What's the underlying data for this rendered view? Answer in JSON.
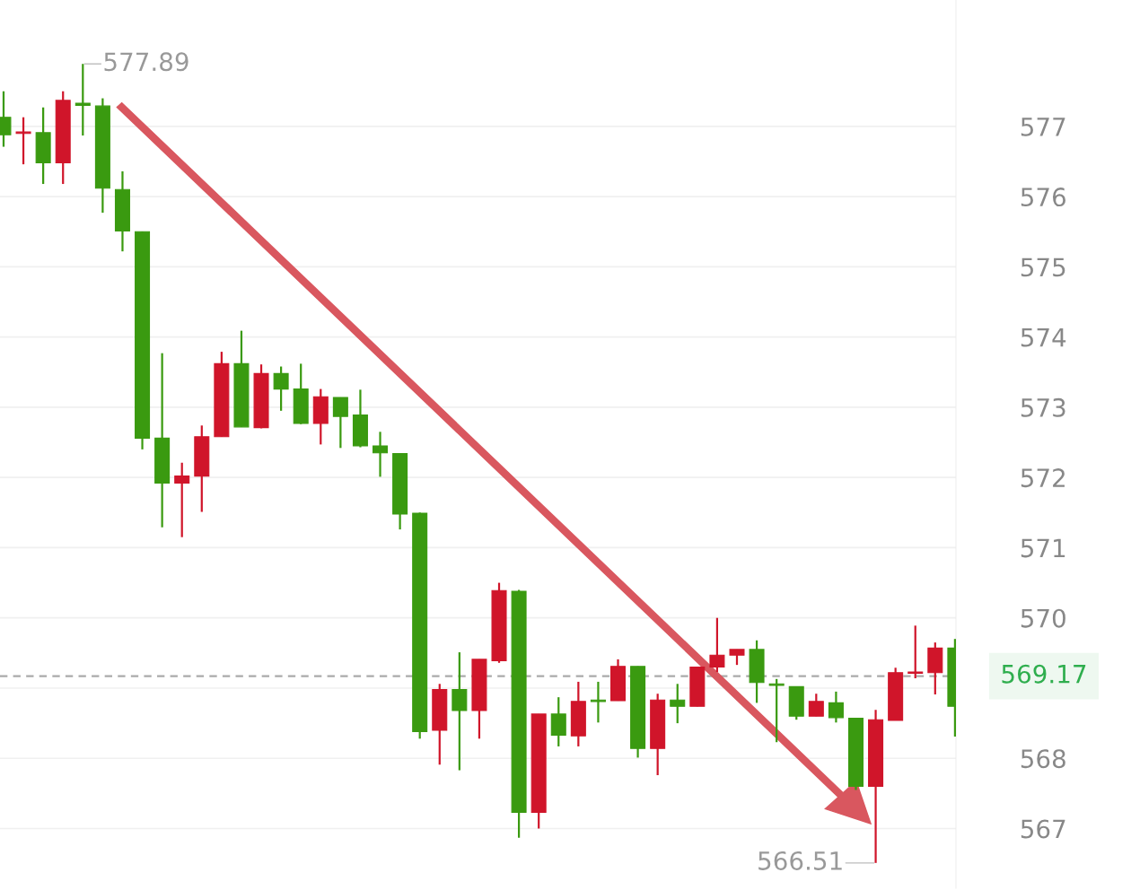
{
  "chart_data": {
    "type": "candlestick",
    "categories": [
      null,
      null,
      null,
      null,
      null,
      null,
      null,
      null,
      null,
      null,
      null,
      null,
      null,
      null,
      null,
      null,
      null,
      null,
      null,
      null,
      null,
      null,
      null,
      null,
      null,
      null,
      null,
      null,
      null,
      null,
      null,
      null,
      null,
      null,
      null,
      null,
      null,
      null,
      null,
      null,
      null,
      null,
      null,
      null,
      null,
      null,
      null,
      null,
      null
    ],
    "ohlc": [
      [
        577.13,
        577.5,
        576.71,
        576.88
      ],
      [
        576.9,
        577.13,
        576.46,
        576.92
      ],
      [
        576.91,
        577.27,
        576.18,
        576.48
      ],
      [
        576.48,
        577.5,
        576.18,
        577.37
      ],
      [
        577.33,
        577.89,
        576.87,
        577.3
      ],
      [
        577.29,
        577.4,
        575.77,
        576.12
      ],
      [
        576.1,
        576.36,
        575.22,
        575.51
      ],
      [
        575.5,
        575.5,
        572.4,
        572.56
      ],
      [
        572.56,
        573.77,
        571.29,
        571.92
      ],
      [
        571.92,
        572.21,
        571.15,
        572.02
      ],
      [
        572.02,
        572.74,
        571.51,
        572.58
      ],
      [
        572.58,
        573.79,
        572.58,
        573.62
      ],
      [
        573.62,
        574.09,
        572.72,
        572.72
      ],
      [
        572.71,
        573.61,
        572.7,
        573.48
      ],
      [
        573.48,
        573.58,
        572.95,
        573.26
      ],
      [
        573.26,
        573.62,
        572.76,
        572.77
      ],
      [
        572.77,
        573.26,
        572.47,
        573.15
      ],
      [
        573.14,
        573.14,
        572.42,
        572.87
      ],
      [
        572.89,
        573.25,
        572.43,
        572.45
      ],
      [
        572.45,
        572.65,
        572.01,
        572.35
      ],
      [
        572.34,
        572.34,
        571.26,
        571.48
      ],
      [
        571.49,
        571.5,
        568.28,
        568.38
      ],
      [
        568.4,
        569.06,
        567.91,
        568.98
      ],
      [
        568.98,
        569.51,
        567.83,
        568.68
      ],
      [
        568.68,
        569.41,
        568.28,
        569.41
      ],
      [
        569.39,
        570.5,
        569.36,
        570.39
      ],
      [
        570.38,
        570.4,
        566.87,
        567.23
      ],
      [
        567.23,
        568.63,
        567.0,
        568.63
      ],
      [
        568.63,
        568.87,
        568.17,
        568.33
      ],
      [
        568.32,
        569.09,
        568.17,
        568.81
      ],
      [
        568.82,
        569.09,
        568.51,
        568.81
      ],
      [
        568.82,
        569.41,
        568.82,
        569.31
      ],
      [
        569.31,
        569.31,
        568.01,
        568.14
      ],
      [
        568.14,
        568.92,
        567.76,
        568.83
      ],
      [
        568.83,
        569.06,
        568.5,
        568.74
      ],
      [
        568.74,
        569.3,
        568.74,
        569.3
      ],
      [
        569.3,
        570.0,
        569.23,
        569.47
      ],
      [
        569.47,
        569.55,
        569.33,
        569.55
      ],
      [
        569.55,
        569.68,
        568.79,
        569.08
      ],
      [
        569.06,
        569.13,
        568.23,
        569.04
      ],
      [
        569.02,
        569.02,
        568.55,
        568.6
      ],
      [
        568.6,
        568.92,
        568.6,
        568.81
      ],
      [
        568.79,
        568.95,
        568.51,
        568.58
      ],
      [
        568.57,
        568.57,
        567.55,
        567.6
      ],
      [
        567.6,
        568.69,
        566.51,
        568.55
      ],
      [
        568.54,
        569.29,
        568.54,
        569.22
      ],
      [
        569.21,
        569.89,
        569.14,
        569.23
      ],
      [
        569.22,
        569.65,
        568.91,
        569.57
      ],
      [
        569.57,
        569.7,
        568.31,
        568.74
      ]
    ],
    "colors": [
      "#3a9a10",
      "#d0152a",
      "#3a9a10",
      "#d0152a",
      "#3a9a10",
      "#3a9a10",
      "#3a9a10",
      "#3a9a10",
      "#3a9a10",
      "#d0152a",
      "#d0152a",
      "#d0152a",
      "#3a9a10",
      "#d0152a",
      "#3a9a10",
      "#3a9a10",
      "#d0152a",
      "#3a9a10",
      "#3a9a10",
      "#3a9a10",
      "#3a9a10",
      "#3a9a10",
      "#d0152a",
      "#3a9a10",
      "#d0152a",
      "#d0152a",
      "#3a9a10",
      "#d0152a",
      "#3a9a10",
      "#d0152a",
      "#3a9a10",
      "#d0152a",
      "#3a9a10",
      "#d0152a",
      "#3a9a10",
      "#d0152a",
      "#d0152a",
      "#d0152a",
      "#3a9a10",
      "#3a9a10",
      "#3a9a10",
      "#d0152a",
      "#3a9a10",
      "#3a9a10",
      "#d0152a",
      "#d0152a",
      "#d0152a",
      "#d0152a",
      "#3a9a10"
    ],
    "ylim": [
      566.15,
      578.8
    ],
    "yticks": [
      567,
      568,
      {
        "value": 569,
        "label": null
      },
      570,
      571,
      572,
      573,
      574,
      575,
      576,
      577
    ],
    "grid": "y",
    "ref_lines": [
      {
        "axis": "y",
        "value": 569.17,
        "label": "569.17",
        "color": "#aaaaaa",
        "line_style": "dashed"
      }
    ],
    "annotations": [
      "577.89",
      "566.51"
    ]
  }
}
